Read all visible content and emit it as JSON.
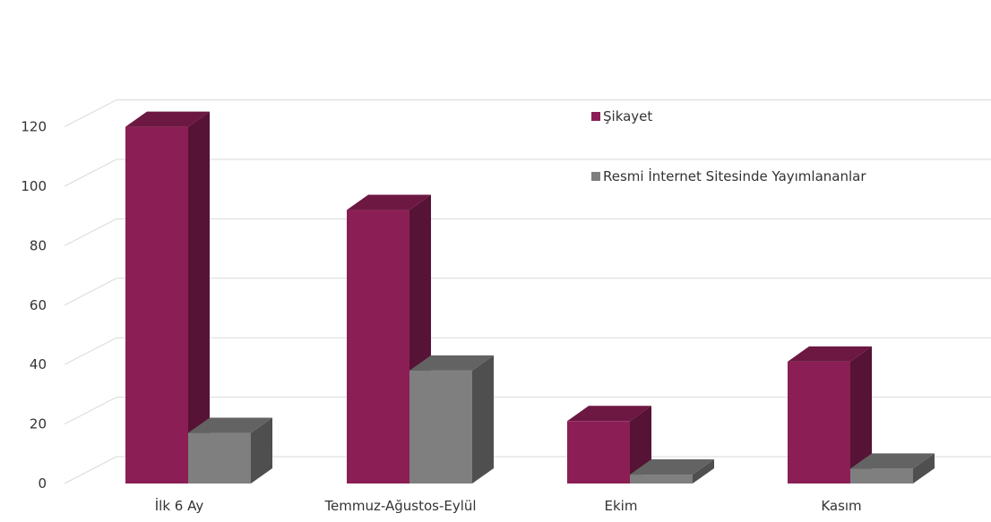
{
  "chart_data": {
    "type": "bar",
    "style": "3d-clustered-column",
    "categories": [
      "İlk 6 Ay",
      "Temmuz-Ağustos-Eylül",
      "Ekim",
      "Kasım"
    ],
    "series": [
      {
        "name": "Şikayet",
        "values": [
          120,
          92,
          21,
          41
        ],
        "color": "#8b1f55"
      },
      {
        "name": "Resmi İnternet Sitesinde Yayımlananlar",
        "values": [
          17,
          38,
          3,
          5
        ],
        "color": "#7f7f7f"
      }
    ],
    "y_ticks": [
      0,
      20,
      40,
      60,
      80,
      100,
      120
    ],
    "ylim": [
      0,
      120
    ],
    "grid": true,
    "legend_position": "right"
  }
}
